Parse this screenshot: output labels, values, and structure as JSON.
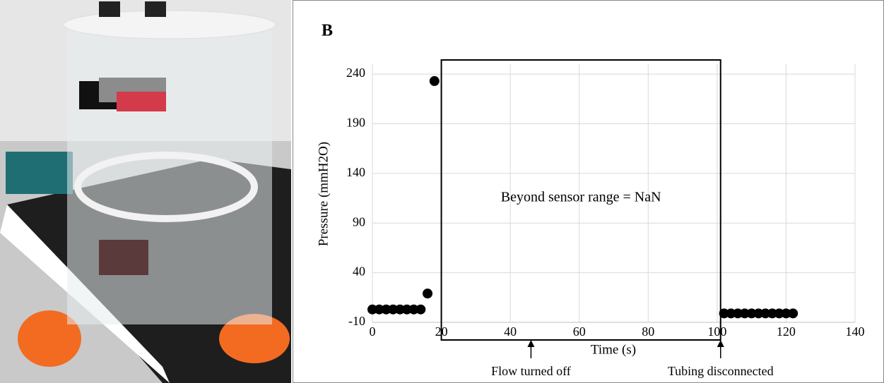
{
  "chart_data": {
    "type": "scatter",
    "panel_label": "B",
    "x_label": "Time (s)",
    "y_label": "Pressure (mmH2O)",
    "x": [
      0,
      2,
      4,
      6,
      8,
      10,
      12,
      14,
      16,
      18,
      102,
      104,
      106,
      108,
      110,
      112,
      114,
      116,
      118,
      120,
      122
    ],
    "values": [
      3,
      3,
      3,
      3,
      3,
      3,
      3,
      3,
      19,
      233,
      -1,
      -1,
      -1,
      -1,
      -1,
      -1,
      -1,
      -1,
      -1,
      -1,
      -1
    ],
    "color": "#000000",
    "xlim": [
      0,
      140
    ],
    "xticks": [
      0,
      20,
      40,
      60,
      80,
      100,
      120,
      140
    ],
    "ylim": [
      -10,
      250
    ],
    "yticks": [
      -10,
      40,
      90,
      140,
      190,
      240
    ],
    "grid": true,
    "region": {
      "x": [
        20,
        101
      ],
      "label": "Beyond sensor range = NaN"
    },
    "annotations": [
      {
        "text": "Flow turned off",
        "x": 46
      },
      {
        "text": "Tubing disconnected",
        "x": 101
      }
    ]
  }
}
